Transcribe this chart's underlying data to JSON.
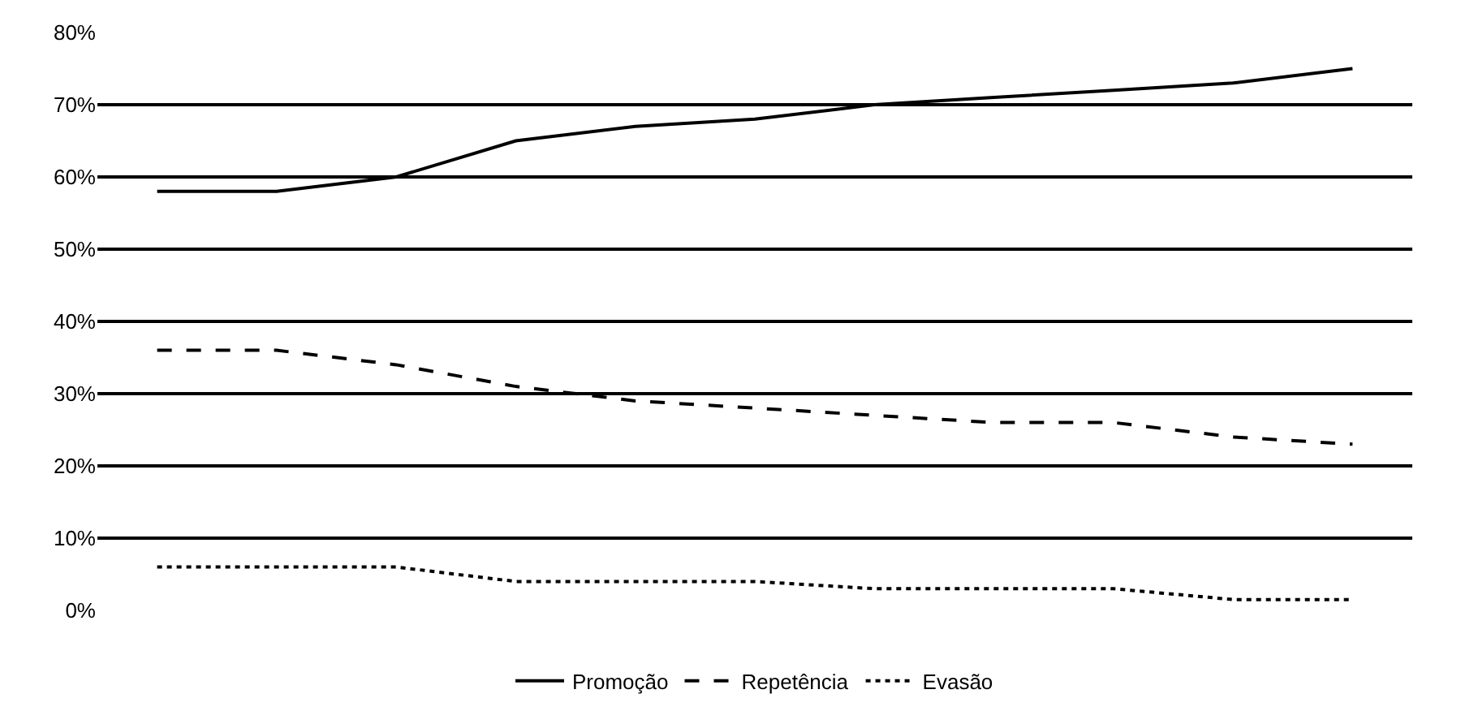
{
  "chart_data": {
    "type": "line",
    "categories": [
      null,
      null,
      null,
      null,
      null,
      null,
      null,
      null,
      null,
      null,
      null
    ],
    "series": [
      {
        "name": "Promoção",
        "color": "#000000",
        "line_style": "solid",
        "values": [
          58,
          58,
          60,
          65,
          67,
          68,
          70,
          71,
          72,
          73,
          75
        ]
      },
      {
        "name": "Repetência",
        "color": "#000000",
        "line_style": "dashed",
        "values": [
          36,
          36,
          34,
          31,
          29,
          28,
          27,
          26,
          26,
          24,
          23
        ]
      },
      {
        "name": "Evasão",
        "color": "#000000",
        "line_style": "dotted",
        "values": [
          6,
          6,
          6,
          4,
          4,
          4,
          3,
          3,
          3,
          1.5,
          1.5
        ]
      }
    ],
    "ylim": [
      0,
      80
    ],
    "yticks": [
      {
        "value": 0,
        "label": "0%"
      },
      {
        "value": 10,
        "label": "10%"
      },
      {
        "value": 20,
        "label": "20%"
      },
      {
        "value": 30,
        "label": "30%"
      },
      {
        "value": 40,
        "label": "40%"
      },
      {
        "value": 50,
        "label": "50%"
      },
      {
        "value": 60,
        "label": "60%"
      },
      {
        "value": 70,
        "label": "70%"
      },
      {
        "value": 80,
        "label": "80%"
      }
    ],
    "grid": "y",
    "legend": "bottom",
    "marker": "none"
  }
}
